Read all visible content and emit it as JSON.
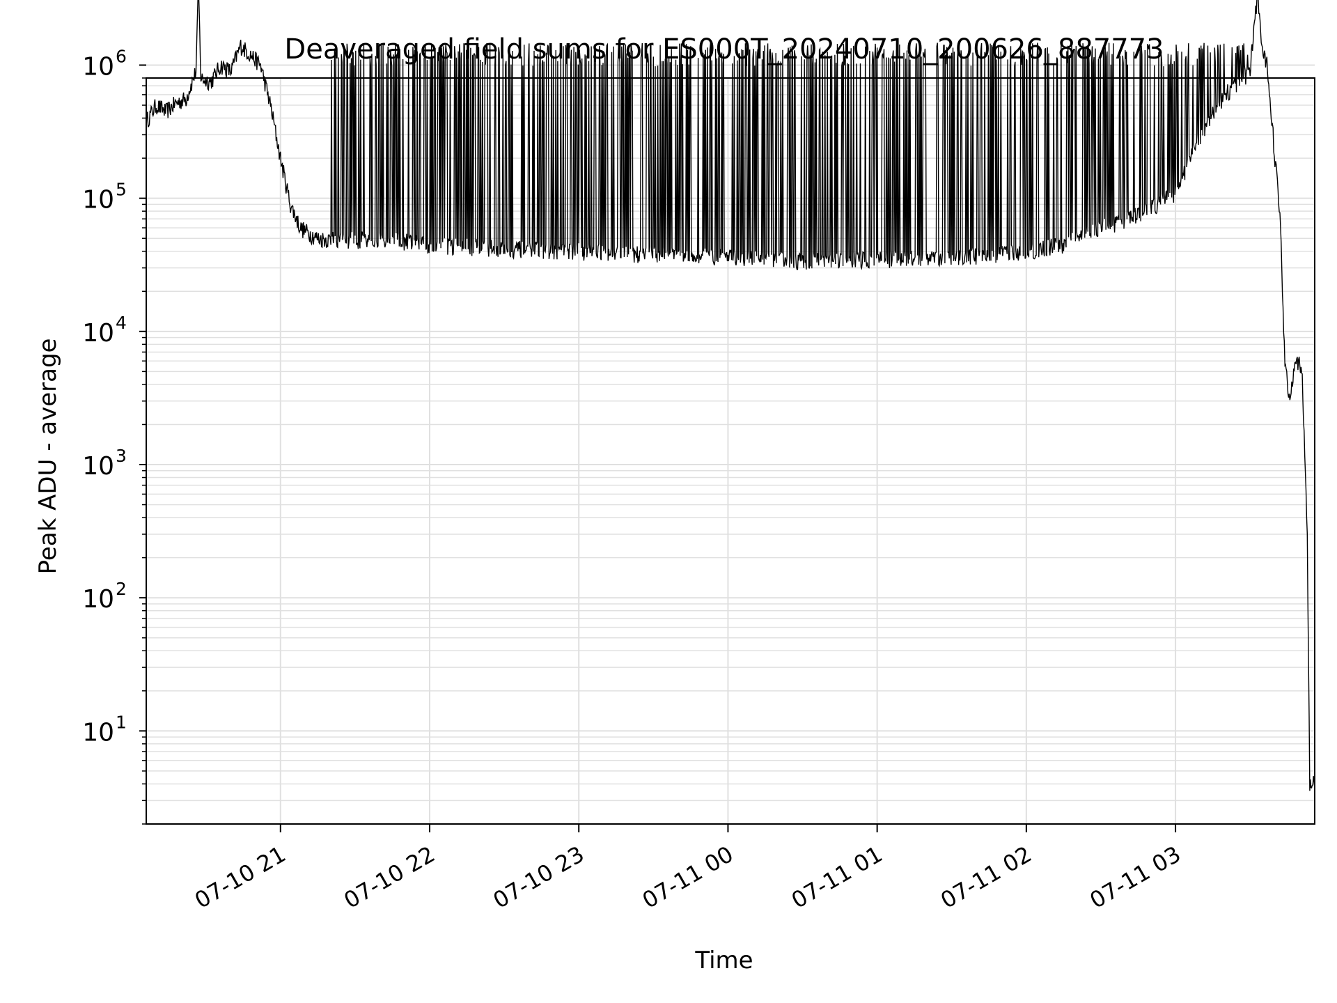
{
  "chart_data": {
    "type": "line",
    "title": "Deaveraged field sums for ES000T_20240710_200626_887773",
    "xlabel": "Time",
    "ylabel": "Peak ADU - average",
    "y_scale": "log",
    "ylim": [
      2,
      800000
    ],
    "xlim": [
      "07-10 20:06",
      "07-11 03:56"
    ],
    "grid": "major and minor, light gray",
    "legend": "none",
    "colors": {
      "line": "#000000",
      "grid": "#e0e0e0",
      "axes": "#000000"
    },
    "x_ticks": [
      "07-10 21",
      "07-10 22",
      "07-10 23",
      "07-11 00",
      "07-11 01",
      "07-11 02",
      "07-11 03"
    ],
    "y_ticks": [
      {
        "value": 10,
        "base": "10",
        "exp": "1"
      },
      {
        "value": 100,
        "base": "10",
        "exp": "2"
      },
      {
        "value": 1000,
        "base": "10",
        "exp": "3"
      },
      {
        "value": 10000,
        "base": "10",
        "exp": "4"
      },
      {
        "value": 100000,
        "base": "10",
        "exp": "5"
      },
      {
        "value": 1000000,
        "base": "10",
        "exp": "6"
      }
    ],
    "series": [
      {
        "points": [
          [
            "07-10 20:06",
            380000
          ],
          [
            "07-10 20:10",
            500000
          ],
          [
            "07-10 20:14",
            450000
          ],
          [
            "07-10 20:18",
            520000
          ],
          [
            "07-10 20:22",
            560000
          ],
          [
            "07-10 20:26",
            900000
          ],
          [
            "07-10 20:27",
            3800000
          ],
          [
            "07-10 20:28",
            800000
          ],
          [
            "07-10 20:32",
            750000
          ],
          [
            "07-10 20:36",
            1000000
          ],
          [
            "07-10 20:40",
            900000
          ],
          [
            "07-10 20:44",
            1400000
          ],
          [
            "07-10 20:48",
            1200000
          ],
          [
            "07-10 20:52",
            1000000
          ],
          [
            "07-10 20:56",
            500000
          ],
          [
            "07-10 21:00",
            200000
          ],
          [
            "07-10 21:04",
            90000
          ],
          [
            "07-10 21:08",
            60000
          ],
          [
            "07-10 21:15",
            50000
          ],
          [
            "07-10 21:25",
            48000
          ],
          [
            "07-10 21:40",
            50000
          ],
          [
            "07-10 22:00",
            45000
          ],
          [
            "07-10 22:30",
            42000
          ],
          [
            "07-10 23:00",
            40000
          ],
          [
            "07-10 23:30",
            38000
          ],
          [
            "07-11 00:00",
            36000
          ],
          [
            "07-11 00:30",
            34000
          ],
          [
            "07-11 01:00",
            35000
          ],
          [
            "07-11 01:30",
            36000
          ],
          [
            "07-11 02:00",
            40000
          ],
          [
            "07-11 02:15",
            45000
          ],
          [
            "07-11 02:30",
            60000
          ],
          [
            "07-11 02:45",
            75000
          ],
          [
            "07-11 03:00",
            110000
          ],
          [
            "07-11 03:10",
            300000
          ],
          [
            "07-11 03:20",
            600000
          ],
          [
            "07-11 03:30",
            900000
          ],
          [
            "07-11 03:33",
            3500000
          ],
          [
            "07-11 03:35",
            1200000
          ],
          [
            "07-11 03:37",
            1000000
          ],
          [
            "07-11 03:40",
            200000
          ],
          [
            "07-11 03:42",
            80000
          ],
          [
            "07-11 03:44",
            6000
          ],
          [
            "07-11 03:46",
            3000
          ],
          [
            "07-11 03:48",
            6500
          ],
          [
            "07-11 03:50",
            5500
          ],
          [
            "07-11 03:51",
            4500
          ],
          [
            "07-11 03:53",
            300
          ],
          [
            "07-11 03:54",
            4
          ],
          [
            "07-11 03:56",
            4
          ]
        ],
        "spikes": [
          {
            "from": "07-10 21:20",
            "to": "07-11 03:30",
            "upper": 1400000,
            "lower": 40000,
            "note": "dense spikes between baseline and ~1.4e6"
          }
        ]
      }
    ]
  }
}
